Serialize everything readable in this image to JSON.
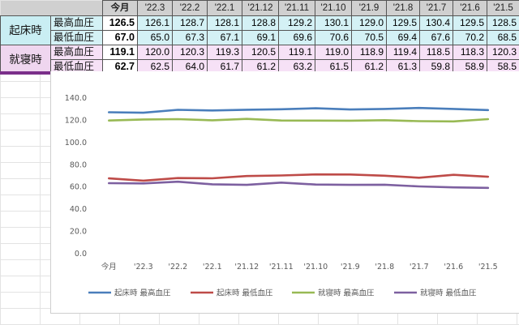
{
  "table": {
    "headers": [
      "今月",
      "'22.3",
      "'22.2",
      "'22.1",
      "'21.12",
      "'21.11",
      "'21.10",
      "'21.9",
      "'21.8",
      "'21.7",
      "'21.6",
      "'21.5"
    ],
    "groups": [
      {
        "name": "起床時",
        "rows": [
          {
            "label": "最高血圧",
            "values": [
              "126.5",
              "126.1",
              "128.7",
              "128.1",
              "128.8",
              "129.2",
              "130.1",
              "129.0",
              "129.5",
              "130.4",
              "129.5",
              "128.5"
            ]
          },
          {
            "label": "最低血圧",
            "values": [
              "67.0",
              "65.0",
              "67.3",
              "67.1",
              "69.1",
              "69.6",
              "70.6",
              "70.5",
              "69.4",
              "67.6",
              "70.2",
              "68.5"
            ]
          }
        ]
      },
      {
        "name": "就寝時",
        "rows": [
          {
            "label": "最高血圧",
            "values": [
              "119.1",
              "120.0",
              "120.3",
              "119.3",
              "120.5",
              "119.1",
              "119.0",
              "118.9",
              "119.4",
              "118.5",
              "118.3",
              "120.3"
            ]
          },
          {
            "label": "最低血圧",
            "values": [
              "62.7",
              "62.5",
              "64.0",
              "61.7",
              "61.2",
              "63.2",
              "61.5",
              "61.2",
              "61.3",
              "59.8",
              "58.9",
              "58.5"
            ]
          }
        ]
      }
    ]
  },
  "colors": {
    "wake_systolic": "#4a7ebb",
    "wake_diastolic": "#be4b48",
    "sleep_systolic": "#98b954",
    "sleep_diastolic": "#7d60a0",
    "band": "#7b2f8a"
  },
  "chart_data": {
    "type": "line",
    "categories": [
      "今月",
      "'22.3",
      "'22.2",
      "'22.1",
      "'21.12",
      "'21.11",
      "'21.10",
      "'21.9",
      "'21.8",
      "'21.7",
      "'21.6",
      "'21.5"
    ],
    "ylim": [
      0,
      140
    ],
    "yticks": [
      "0.0",
      "20.0",
      "40.0",
      "60.0",
      "80.0",
      "100.0",
      "120.0",
      "140.0"
    ],
    "grid": false,
    "legend_position": "bottom",
    "series": [
      {
        "name": "起床時 最高血圧",
        "color_key": "wake_systolic",
        "values": [
          126.5,
          126.1,
          128.7,
          128.1,
          128.8,
          129.2,
          130.1,
          129.0,
          129.5,
          130.4,
          129.5,
          128.5
        ]
      },
      {
        "name": "起床時 最低血圧",
        "color_key": "wake_diastolic",
        "values": [
          67.0,
          65.0,
          67.3,
          67.1,
          69.1,
          69.6,
          70.6,
          70.5,
          69.4,
          67.6,
          70.2,
          68.5
        ]
      },
      {
        "name": "就寝時 最高血圧",
        "color_key": "sleep_systolic",
        "values": [
          119.1,
          120.0,
          120.3,
          119.3,
          120.5,
          119.1,
          119.0,
          118.9,
          119.4,
          118.5,
          118.3,
          120.3
        ]
      },
      {
        "name": "就寝時 最低血圧",
        "color_key": "sleep_diastolic",
        "values": [
          62.7,
          62.5,
          64.0,
          61.7,
          61.2,
          63.2,
          61.5,
          61.2,
          61.3,
          59.8,
          58.9,
          58.5
        ]
      }
    ]
  }
}
